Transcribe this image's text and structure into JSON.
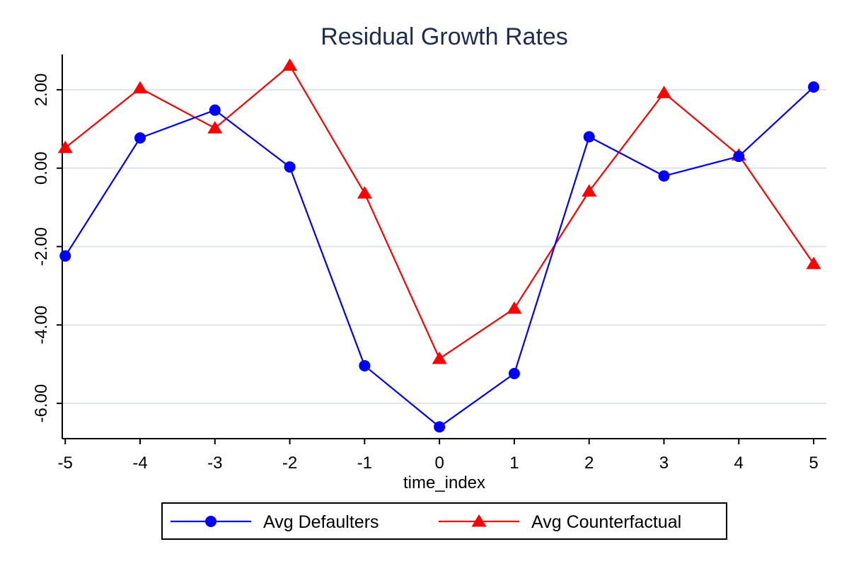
{
  "chart_data": {
    "type": "line",
    "title": "Residual Growth Rates",
    "xlabel": "time_index",
    "ylabel": "",
    "x": [
      -5,
      -4,
      -3,
      -2,
      -1,
      0,
      1,
      2,
      3,
      4,
      5
    ],
    "x_tick_labels": [
      "-5",
      "-4",
      "-3",
      "-2",
      "-1",
      "0",
      "1",
      "2",
      "3",
      "4",
      "5"
    ],
    "y_ticks": [
      2,
      0,
      -2,
      -4,
      -6
    ],
    "y_tick_labels": [
      "2.00",
      "0.00",
      "-2.00",
      "-4.00",
      "-6.00"
    ],
    "xlim": [
      -5.04,
      5.17
    ],
    "ylim": [
      -6.9,
      2.9
    ],
    "grid": true,
    "legend_position": "bottom",
    "series": [
      {
        "name": "Avg Defaulters",
        "color": "#0000ff",
        "marker": "circle",
        "values": [
          -2.24,
          0.77,
          1.48,
          0.03,
          -5.04,
          -6.6,
          -5.24,
          0.8,
          -0.2,
          0.3,
          2.07
        ]
      },
      {
        "name": "Avg Counterfactual",
        "color": "#ff0000",
        "marker": "triangle",
        "values": [
          0.52,
          2.04,
          1.02,
          2.62,
          -0.64,
          -4.86,
          -3.58,
          -0.59,
          1.92,
          0.33,
          -2.44
        ]
      }
    ]
  },
  "colors": {
    "axis": "#000000",
    "gridline": "#dfe3ee",
    "title": "#1e2d4f"
  }
}
